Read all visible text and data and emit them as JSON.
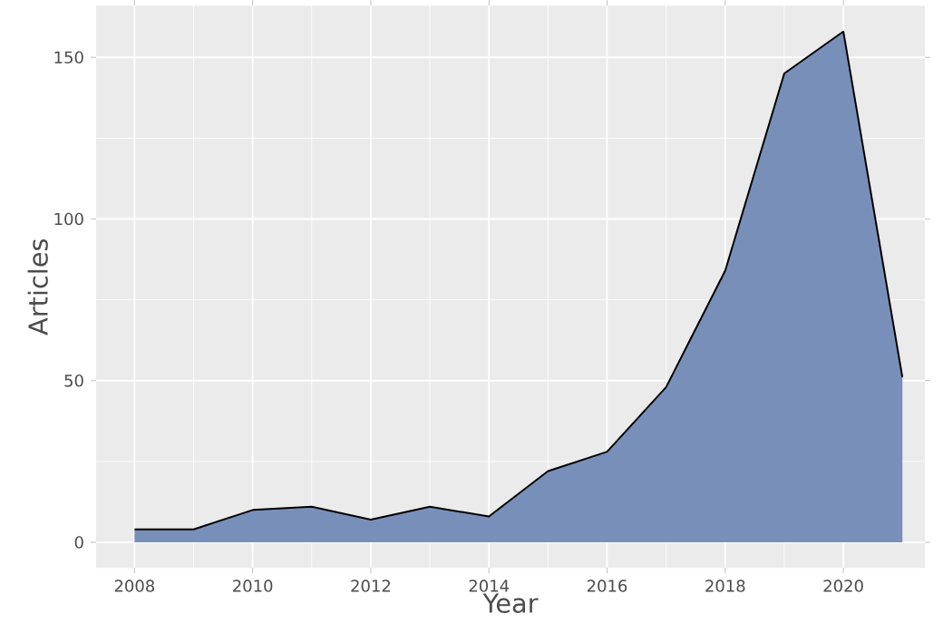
{
  "chart_data": {
    "type": "area",
    "xlabel": "Year",
    "ylabel": "Articles",
    "x": [
      2008,
      2009,
      2010,
      2011,
      2012,
      2013,
      2014,
      2015,
      2016,
      2017,
      2018,
      2019,
      2020,
      2021
    ],
    "series": [
      {
        "color": "#7890b9",
        "values": [
          4,
          4,
          10,
          11,
          7,
          11,
          8,
          22,
          28,
          48,
          84,
          145,
          158,
          51
        ]
      }
    ],
    "xlim": [
      2007.35,
      2021.38
    ],
    "ylim": [
      -7.9,
      166
    ],
    "xticks": [
      2008,
      2010,
      2012,
      2014,
      2016,
      2018,
      2020
    ],
    "yticks": [
      0,
      50,
      100,
      150
    ],
    "grid": true
  }
}
